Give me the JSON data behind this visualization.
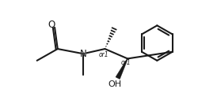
{
  "line_color": "#1a1a1a",
  "line_width": 1.5,
  "font_size": 7.0,
  "or1_fontsize": 5.5,
  "O_label": "O",
  "N_label": "N",
  "OH_label": "OH",
  "or1_label": "or1"
}
